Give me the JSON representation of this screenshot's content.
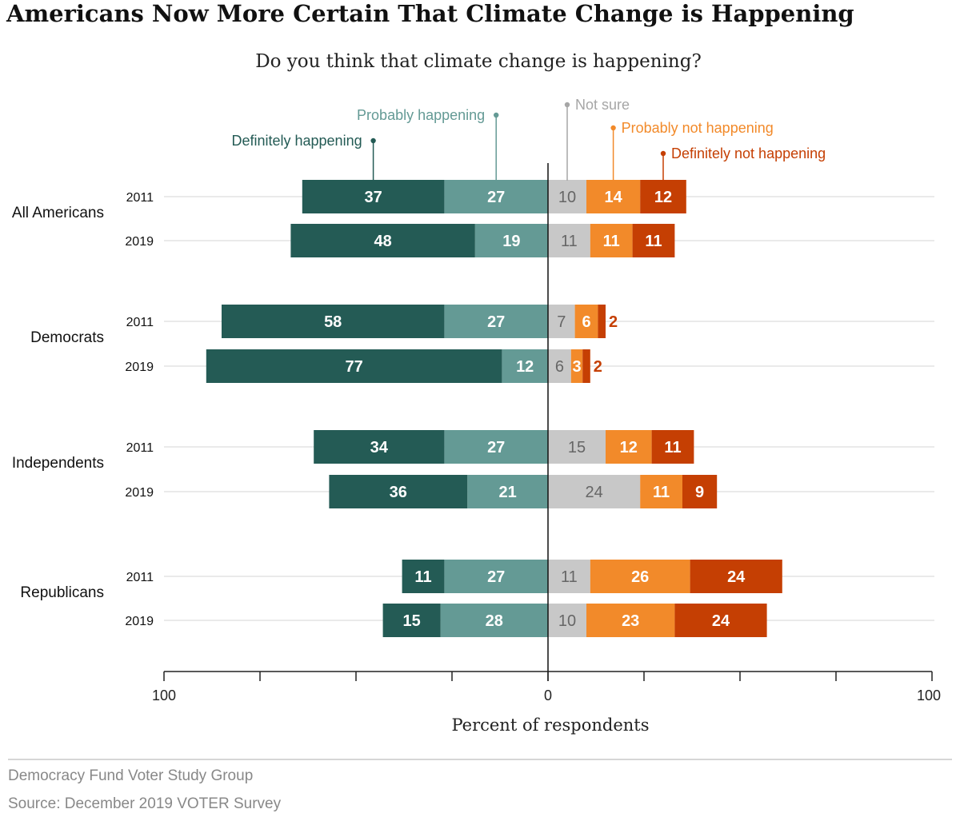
{
  "title": "Americans Now More Certain That Climate Change is Happening",
  "footer": {
    "organization": "Democracy Fund Voter Study Group",
    "source": "Source: December 2019 VOTER Survey"
  },
  "chart_data": {
    "type": "bar",
    "orientation": "horizontal",
    "stacking": "diverging",
    "subtitle": "Do you think that climate change is happening?",
    "xlabel": "Percent of respondents",
    "xlim": [
      -100,
      100
    ],
    "x_tick_labels": [
      "100",
      "0",
      "100"
    ],
    "legend_placement": "top",
    "groups": [
      "All Americans",
      "Democrats",
      "Independents",
      "Republicans"
    ],
    "categories": [
      "All Americans 2011",
      "All Americans 2019",
      "Democrats 2011",
      "Democrats 2019",
      "Independents 2011",
      "Independents 2019",
      "Republicans 2011",
      "Republicans 2019"
    ],
    "row_labels": [
      "2011",
      "2019",
      "2011",
      "2019",
      "2011",
      "2019",
      "2011",
      "2019"
    ],
    "series": [
      {
        "name": "Definitely happening",
        "side": "left",
        "color": "#245b55",
        "values": [
          37,
          48,
          58,
          77,
          34,
          36,
          11,
          15
        ]
      },
      {
        "name": "Probably happening",
        "side": "left",
        "color": "#649a95",
        "values": [
          27,
          19,
          27,
          12,
          27,
          21,
          27,
          28
        ]
      },
      {
        "name": "Not sure",
        "side": "right",
        "color": "#c8c8c8",
        "values": [
          10,
          11,
          7,
          6,
          15,
          24,
          11,
          10
        ]
      },
      {
        "name": "Probably not happening",
        "side": "right",
        "color": "#f28a2a",
        "values": [
          14,
          11,
          6,
          3,
          12,
          11,
          26,
          23
        ]
      },
      {
        "name": "Definitely not happening",
        "side": "right",
        "color": "#c53f03",
        "values": [
          12,
          11,
          2,
          2,
          11,
          9,
          24,
          24
        ]
      }
    ]
  }
}
